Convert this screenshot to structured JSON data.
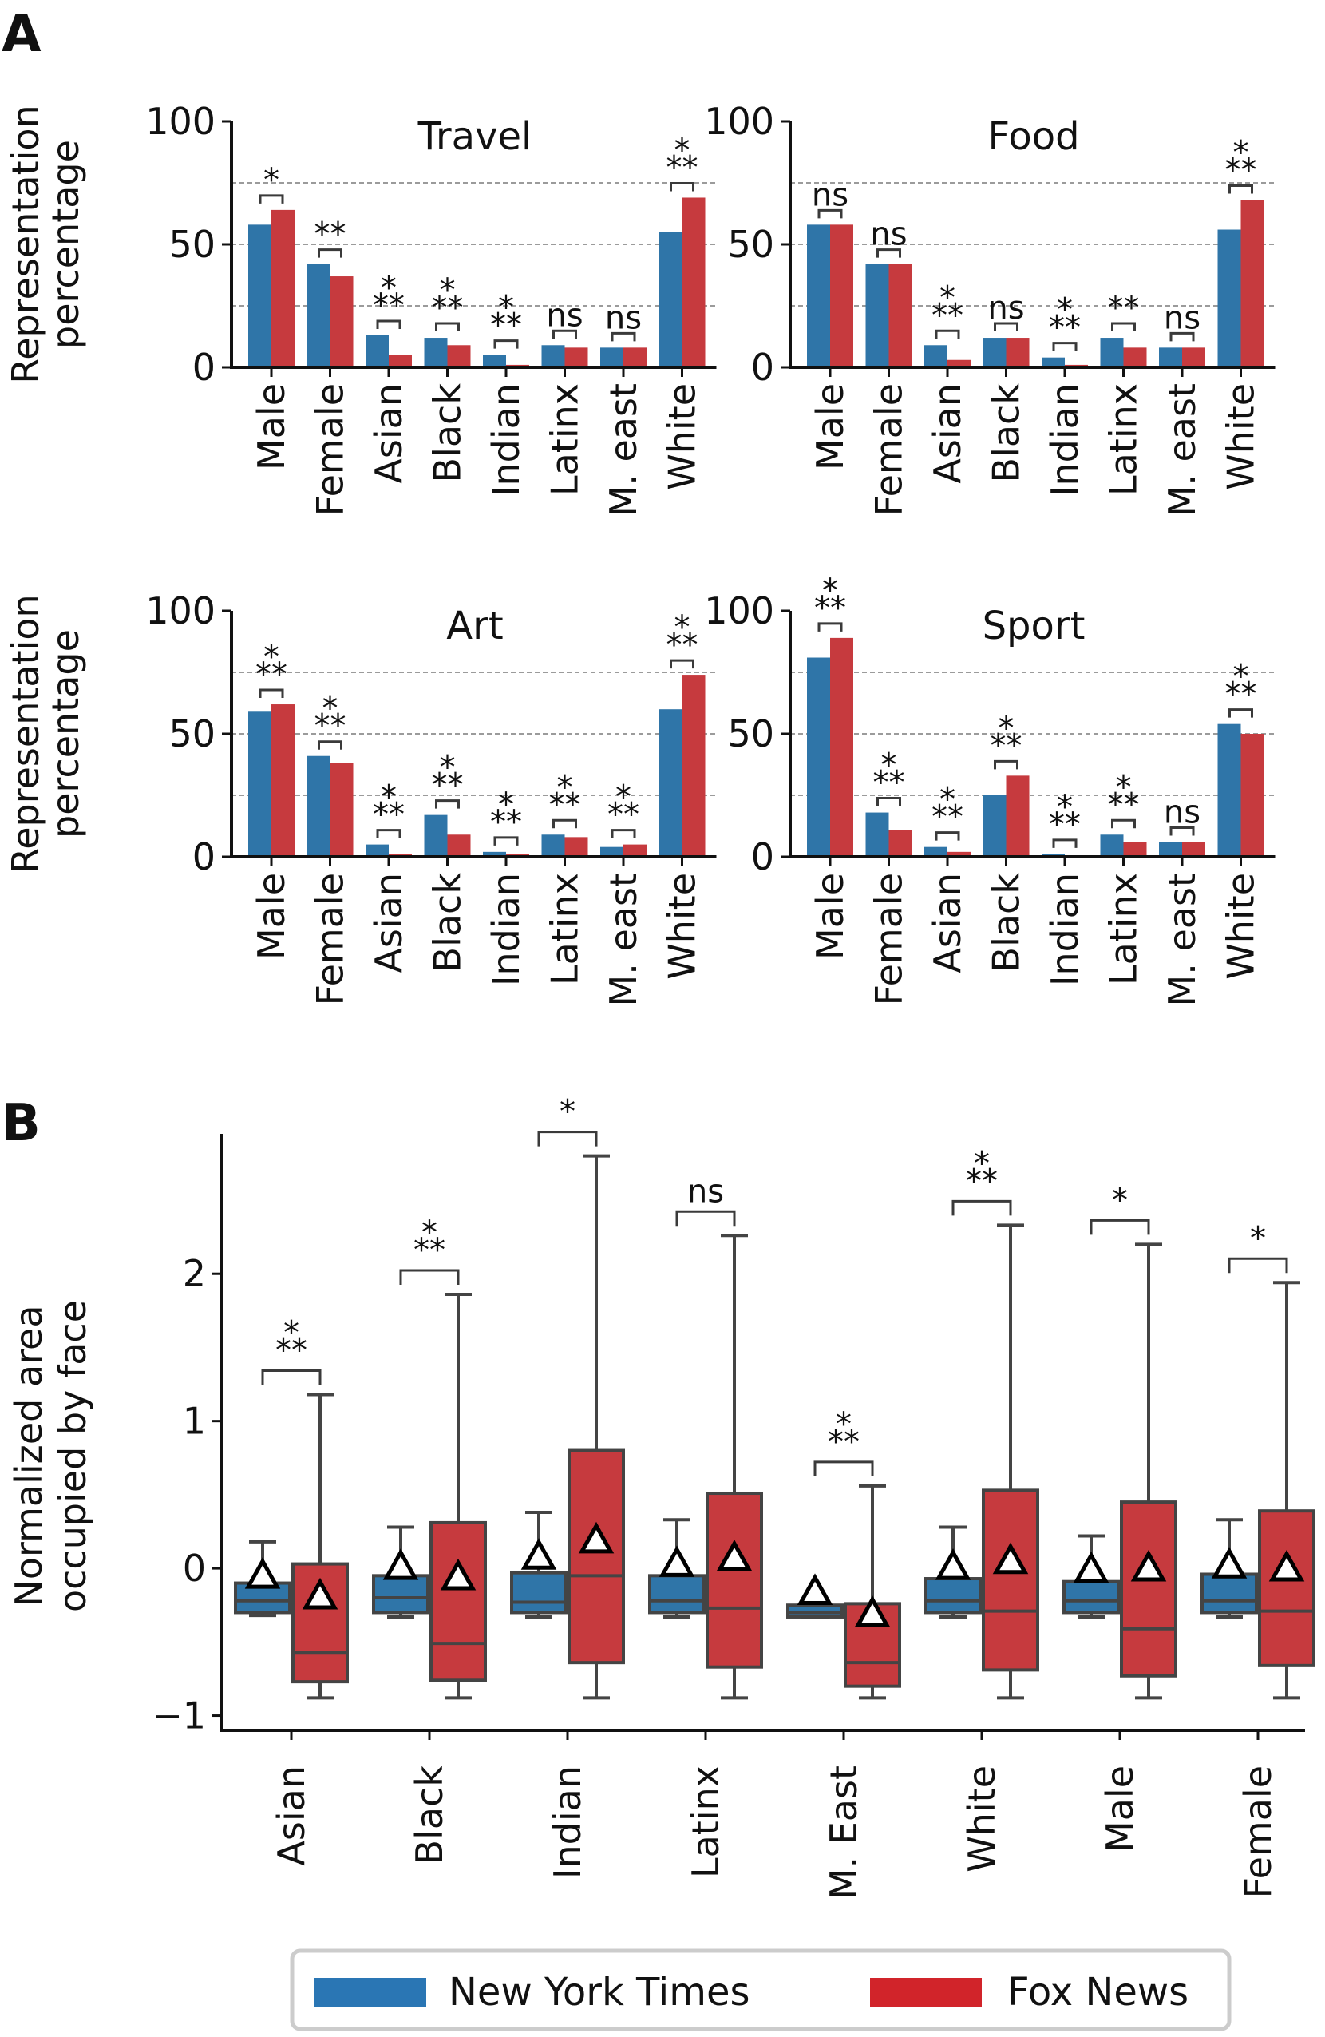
{
  "panel_labels": {
    "a": "A",
    "b": "B"
  },
  "colors": {
    "nyt": "#2f75a8",
    "fox": "#c63a3e",
    "legend_nyt": "#2a76b4",
    "legend_fox": "#d1242a"
  },
  "legend": {
    "items": [
      "New York Times",
      "Fox News"
    ],
    "placement": "bottom-center"
  },
  "chart_data": [
    {
      "type": "bar",
      "title": "Travel",
      "ylabel": "Representation\npercentage",
      "ylim": [
        0,
        100
      ],
      "yticks": [
        0,
        50,
        100
      ],
      "gridlines": [
        25,
        50,
        75
      ],
      "categories": [
        "Male",
        "Female",
        "Asian",
        "Black",
        "Indian",
        "Latinx",
        "M. east",
        "White"
      ],
      "series": [
        {
          "name": "New York Times",
          "values": [
            58,
            42,
            13,
            12,
            5,
            9,
            8,
            55
          ]
        },
        {
          "name": "Fox News",
          "values": [
            64,
            37,
            5,
            9,
            1,
            8,
            8,
            69
          ]
        }
      ],
      "significance": [
        "*",
        "**",
        "***",
        "***",
        "***",
        "ns",
        "ns",
        "***"
      ]
    },
    {
      "type": "bar",
      "title": "Food",
      "ylabel": "",
      "ylim": [
        0,
        100
      ],
      "yticks": [
        0,
        50,
        100
      ],
      "gridlines": [
        25,
        50,
        75
      ],
      "categories": [
        "Male",
        "Female",
        "Asian",
        "Black",
        "Indian",
        "Latinx",
        "M. east",
        "White"
      ],
      "series": [
        {
          "name": "New York Times",
          "values": [
            58,
            42,
            9,
            12,
            4,
            12,
            8,
            56
          ]
        },
        {
          "name": "Fox News",
          "values": [
            58,
            42,
            3,
            12,
            1,
            8,
            8,
            68
          ]
        }
      ],
      "significance": [
        "ns",
        "ns",
        "***",
        "ns",
        "***",
        "**",
        "ns",
        "***"
      ]
    },
    {
      "type": "bar",
      "title": "Art",
      "ylabel": "Representation\npercentage",
      "ylim": [
        0,
        100
      ],
      "yticks": [
        0,
        50,
        100
      ],
      "gridlines": [
        25,
        50,
        75
      ],
      "categories": [
        "Male",
        "Female",
        "Asian",
        "Black",
        "Indian",
        "Latinx",
        "M. east",
        "White"
      ],
      "series": [
        {
          "name": "New York Times",
          "values": [
            59,
            41,
            5,
            17,
            2,
            9,
            4,
            60
          ]
        },
        {
          "name": "Fox News",
          "values": [
            62,
            38,
            1,
            9,
            1,
            8,
            5,
            74
          ]
        }
      ],
      "significance": [
        "***",
        "***",
        "***",
        "***",
        "***",
        "***",
        "***",
        "***"
      ]
    },
    {
      "type": "bar",
      "title": "Sport",
      "ylabel": "",
      "ylim": [
        0,
        100
      ],
      "yticks": [
        0,
        50,
        100
      ],
      "gridlines": [
        25,
        50,
        75
      ],
      "categories": [
        "Male",
        "Female",
        "Asian",
        "Black",
        "Indian",
        "Latinx",
        "M. east",
        "White"
      ],
      "series": [
        {
          "name": "New York Times",
          "values": [
            81,
            18,
            4,
            25,
            1,
            9,
            6,
            54
          ]
        },
        {
          "name": "Fox News",
          "values": [
            89,
            11,
            2,
            33,
            0,
            6,
            6,
            50
          ]
        }
      ],
      "significance": [
        "***",
        "***",
        "***",
        "***",
        "***",
        "***",
        "ns",
        "***"
      ]
    },
    {
      "type": "box",
      "title": "",
      "ylabel": "Normalized area\noccupied by face",
      "ylim": [
        -1.1,
        2.95
      ],
      "yticks": [
        -1,
        0,
        1,
        2
      ],
      "categories": [
        "Asian",
        "Black",
        "Indian",
        "Latinx",
        "M. East",
        "White",
        "Male",
        "Female"
      ],
      "series": [
        {
          "name": "New York Times",
          "boxes": [
            {
              "whislo": -0.32,
              "q1": -0.3,
              "med": -0.22,
              "q3": -0.1,
              "whishi": 0.18,
              "mean": -0.06
            },
            {
              "whislo": -0.33,
              "q1": -0.3,
              "med": -0.2,
              "q3": -0.05,
              "whishi": 0.28,
              "mean": 0.0
            },
            {
              "whislo": -0.33,
              "q1": -0.3,
              "med": -0.23,
              "q3": -0.03,
              "whishi": 0.38,
              "mean": 0.07
            },
            {
              "whislo": -0.33,
              "q1": -0.3,
              "med": -0.22,
              "q3": -0.05,
              "whishi": 0.33,
              "mean": 0.02
            },
            {
              "whislo": -0.33,
              "q1": -0.33,
              "med": -0.3,
              "q3": -0.25,
              "whishi": -0.25,
              "mean": -0.17
            },
            {
              "whislo": -0.33,
              "q1": -0.3,
              "med": -0.22,
              "q3": -0.07,
              "whishi": 0.28,
              "mean": 0.0
            },
            {
              "whislo": -0.33,
              "q1": -0.3,
              "med": -0.22,
              "q3": -0.09,
              "whishi": 0.22,
              "mean": -0.02
            },
            {
              "whislo": -0.33,
              "q1": -0.3,
              "med": -0.22,
              "q3": -0.04,
              "whishi": 0.33,
              "mean": 0.01
            }
          ]
        },
        {
          "name": "Fox News",
          "boxes": [
            {
              "whislo": -0.88,
              "q1": -0.77,
              "med": -0.57,
              "q3": 0.03,
              "whishi": 1.18,
              "mean": -0.2
            },
            {
              "whislo": -0.88,
              "q1": -0.76,
              "med": -0.51,
              "q3": 0.31,
              "whishi": 1.86,
              "mean": -0.07
            },
            {
              "whislo": -0.88,
              "q1": -0.64,
              "med": -0.05,
              "q3": 0.8,
              "whishi": 2.8,
              "mean": 0.18
            },
            {
              "whislo": -0.88,
              "q1": -0.67,
              "med": -0.27,
              "q3": 0.51,
              "whishi": 2.26,
              "mean": 0.06
            },
            {
              "whislo": -0.88,
              "q1": -0.8,
              "med": -0.64,
              "q3": -0.24,
              "whishi": 0.56,
              "mean": -0.32
            },
            {
              "whislo": -0.88,
              "q1": -0.69,
              "med": -0.29,
              "q3": 0.53,
              "whishi": 2.33,
              "mean": 0.04
            },
            {
              "whislo": -0.88,
              "q1": -0.73,
              "med": -0.41,
              "q3": 0.45,
              "whishi": 2.2,
              "mean": -0.01
            },
            {
              "whislo": -0.88,
              "q1": -0.66,
              "med": -0.29,
              "q3": 0.39,
              "whishi": 1.94,
              "mean": -0.01
            }
          ]
        }
      ],
      "significance": [
        "***",
        "***",
        "*",
        "ns",
        "***",
        "***",
        "*",
        "*"
      ]
    }
  ]
}
